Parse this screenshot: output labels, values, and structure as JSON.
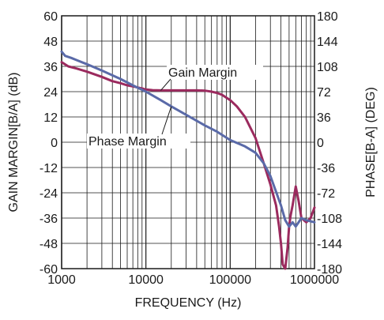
{
  "chart_data": {
    "type": "line",
    "xlabel": "FREQUENCY (Hz)",
    "ylabel_left": "GAIN MARGIN[B/A] (dB)",
    "ylabel_right": "PHASE[B-A] (DEG)",
    "x_scale": "log",
    "xlim": [
      1000,
      1000000
    ],
    "ylim_left": [
      -60,
      60
    ],
    "ylim_right": [
      -180,
      180
    ],
    "grid": true,
    "x_ticks": [
      "1000",
      "10000",
      "100000",
      "1000000"
    ],
    "y_left_ticks": [
      "60",
      "48",
      "36",
      "24",
      "12",
      "0",
      "-12",
      "-24",
      "-36",
      "-48",
      "-60"
    ],
    "y_right_ticks": [
      "180",
      "144",
      "108",
      "72",
      "36",
      "0",
      "-36",
      "-72",
      "-108",
      "-144",
      "-180"
    ],
    "series": [
      {
        "name": "Gain Margin",
        "axis": "left",
        "color": "#9b2a5e",
        "x": [
          1000,
          1200,
          1500,
          2000,
          3000,
          4000,
          5000,
          6000,
          7000,
          8000,
          9000,
          10000,
          12000,
          15000,
          20000,
          30000,
          40000,
          50000,
          60000,
          70000,
          80000,
          100000,
          120000,
          150000,
          200000,
          250000,
          300000,
          350000,
          380000,
          400000,
          420000,
          450000,
          480000,
          500000,
          520000,
          550000,
          600000,
          650000,
          700000,
          800000,
          900000,
          1000000
        ],
        "values": [
          38,
          36,
          35,
          33.5,
          31,
          29,
          28,
          27,
          26.5,
          26,
          25.5,
          25,
          24.7,
          24.6,
          24.6,
          24.6,
          24.6,
          24.5,
          24,
          23.4,
          22.5,
          20,
          17,
          12,
          2,
          -10,
          -20,
          -30,
          -40,
          -48,
          -58,
          -60,
          -50,
          -40,
          -35,
          -30,
          -21,
          -28,
          -36,
          -38,
          -36,
          -31
        ]
      },
      {
        "name": "Phase Margin",
        "axis": "right",
        "color": "#5a6aa8",
        "x": [
          1000,
          1100,
          1300,
          1500,
          2000,
          3000,
          5000,
          7000,
          10000,
          15000,
          20000,
          30000,
          50000,
          70000,
          100000,
          150000,
          200000,
          250000,
          300000,
          400000,
          450000,
          500000,
          550000,
          600000,
          700000,
          800000,
          1000000
        ],
        "values": [
          129,
          123,
          120,
          117,
          111,
          102,
          90,
          81,
          72,
          60,
          51,
          39,
          24,
          15,
          3,
          -6,
          -15,
          -30,
          -48,
          -90,
          -111,
          -120,
          -114,
          -120,
          -108,
          -111,
          -114
        ]
      }
    ],
    "annotations": [
      {
        "text": "Gain Margin",
        "series": "Gain Margin"
      },
      {
        "text": "Phase Margin",
        "series": "Phase Margin"
      }
    ]
  }
}
